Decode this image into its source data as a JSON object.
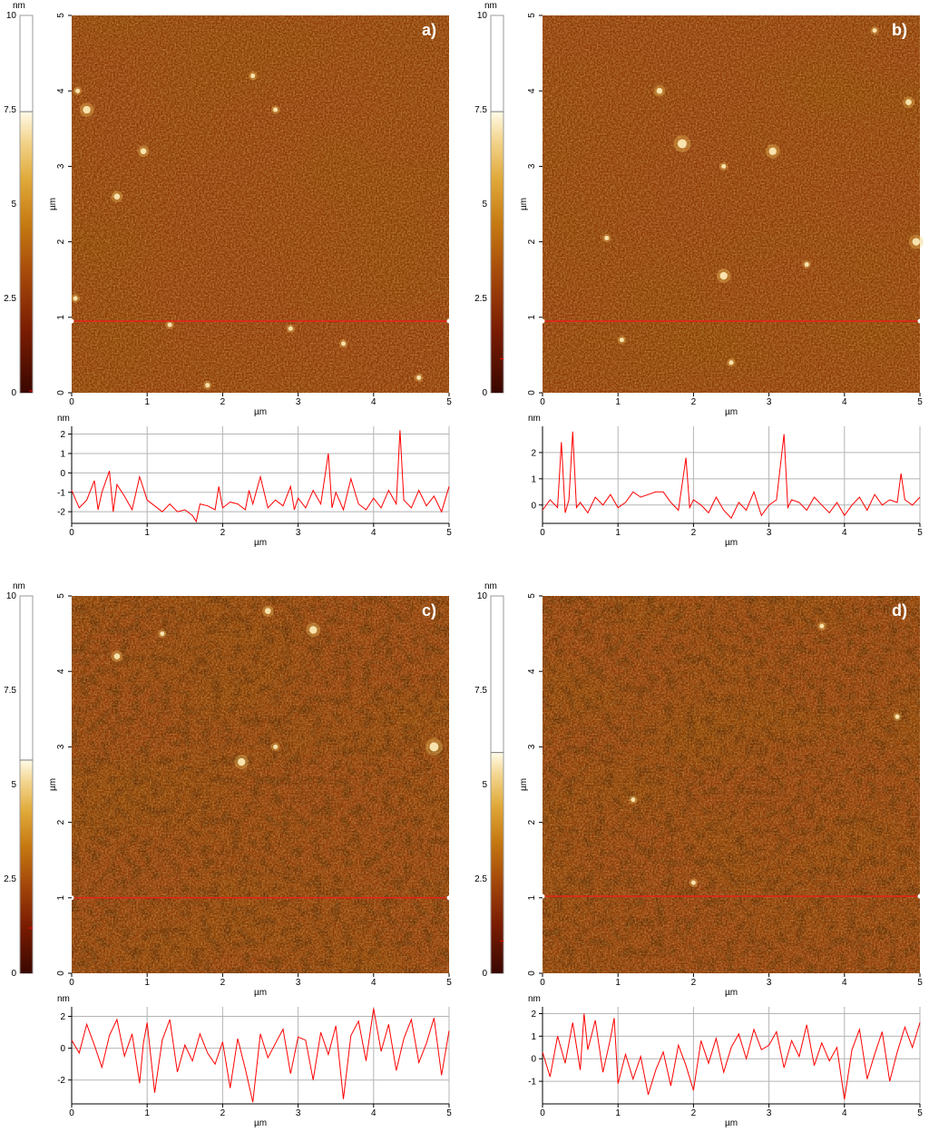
{
  "chart_data": [
    {
      "type": "heatmap",
      "panel_label": "a)",
      "image": {
        "xlabel": "µm",
        "ylabel": "µm",
        "xlim": [
          0,
          5
        ],
        "ylim": [
          0,
          5
        ],
        "xticks": [
          "0",
          "1",
          "2",
          "3",
          "4",
          "5"
        ],
        "yticks": [
          "0",
          "1",
          "2",
          "3",
          "4",
          "5"
        ],
        "scan_line_y": 0.95,
        "features": [
          {
            "x": 0.2,
            "y": 3.75,
            "r": 0.05
          },
          {
            "x": 0.08,
            "y": 4.0,
            "r": 0.03
          },
          {
            "x": 0.95,
            "y": 3.2,
            "r": 0.04
          },
          {
            "x": 0.6,
            "y": 2.6,
            "r": 0.04
          },
          {
            "x": 1.3,
            "y": 0.9,
            "r": 0.03
          },
          {
            "x": 2.4,
            "y": 4.2,
            "r": 0.03
          },
          {
            "x": 2.9,
            "y": 0.85,
            "r": 0.03
          },
          {
            "x": 3.6,
            "y": 0.65,
            "r": 0.03
          },
          {
            "x": 1.8,
            "y": 0.1,
            "r": 0.03
          },
          {
            "x": 0.05,
            "y": 1.25,
            "r": 0.03
          },
          {
            "x": 4.6,
            "y": 0.2,
            "r": 0.03
          },
          {
            "x": 2.7,
            "y": 3.75,
            "r": 0.03
          }
        ]
      },
      "colorbar": {
        "unit": "nm",
        "ticks": [
          "0",
          "2.5",
          "5",
          "7.5",
          "10"
        ],
        "range": [
          0,
          10
        ],
        "data_max": 7.45,
        "data_min": 0.05
      },
      "profile": {
        "ylabel": "nm",
        "xlabel": "µm",
        "xlim": [
          0,
          5
        ],
        "ylim": [
          -2.6,
          2.4
        ],
        "xticks": [
          "0",
          "1",
          "2",
          "3",
          "4",
          "5"
        ],
        "yticks": [
          "-2",
          "-1",
          "0",
          "1",
          "2"
        ],
        "x": [
          0,
          0.1,
          0.2,
          0.3,
          0.35,
          0.4,
          0.5,
          0.55,
          0.6,
          0.7,
          0.8,
          0.9,
          1.0,
          1.1,
          1.2,
          1.3,
          1.4,
          1.5,
          1.6,
          1.65,
          1.7,
          1.8,
          1.9,
          1.95,
          2.0,
          2.1,
          2.2,
          2.3,
          2.35,
          2.4,
          2.5,
          2.6,
          2.7,
          2.8,
          2.9,
          2.95,
          3.0,
          3.1,
          3.2,
          3.3,
          3.4,
          3.45,
          3.5,
          3.6,
          3.7,
          3.8,
          3.9,
          4.0,
          4.1,
          4.2,
          4.3,
          4.35,
          4.4,
          4.5,
          4.6,
          4.7,
          4.8,
          4.9,
          5.0
        ],
        "y": [
          -0.9,
          -1.8,
          -1.4,
          -0.4,
          -1.9,
          -1.0,
          0.1,
          -2.0,
          -0.6,
          -1.2,
          -1.9,
          -0.2,
          -1.4,
          -1.7,
          -2.0,
          -1.6,
          -2.0,
          -1.9,
          -2.2,
          -2.5,
          -1.6,
          -1.7,
          -1.9,
          -0.7,
          -1.8,
          -1.5,
          -1.6,
          -1.9,
          -0.9,
          -1.6,
          -0.2,
          -1.8,
          -1.4,
          -1.7,
          -0.7,
          -1.9,
          -1.3,
          -1.8,
          -0.9,
          -1.6,
          1.0,
          -1.8,
          -1.0,
          -1.9,
          -0.3,
          -1.6,
          -1.9,
          -1.3,
          -1.8,
          -0.9,
          -1.6,
          2.2,
          -1.4,
          -1.8,
          -0.9,
          -1.7,
          -1.2,
          -2.0,
          -0.7
        ]
      }
    },
    {
      "type": "heatmap",
      "panel_label": "b)",
      "image": {
        "xlabel": "µm",
        "ylabel": "µm",
        "xlim": [
          0,
          5
        ],
        "ylim": [
          0,
          5
        ],
        "xticks": [
          "0",
          "1",
          "2",
          "3",
          "4",
          "5"
        ],
        "yticks": [
          "0",
          "1",
          "2",
          "3",
          "4",
          "5"
        ],
        "scan_line_y": 0.95,
        "features": [
          {
            "x": 1.85,
            "y": 3.3,
            "r": 0.06
          },
          {
            "x": 3.05,
            "y": 3.2,
            "r": 0.05
          },
          {
            "x": 2.4,
            "y": 1.55,
            "r": 0.05
          },
          {
            "x": 4.95,
            "y": 2.0,
            "r": 0.05
          },
          {
            "x": 4.85,
            "y": 3.85,
            "r": 0.04
          },
          {
            "x": 1.55,
            "y": 4.0,
            "r": 0.04
          },
          {
            "x": 2.4,
            "y": 3.0,
            "r": 0.03
          },
          {
            "x": 0.85,
            "y": 2.05,
            "r": 0.03
          },
          {
            "x": 1.05,
            "y": 0.7,
            "r": 0.03
          },
          {
            "x": 3.5,
            "y": 1.7,
            "r": 0.03
          },
          {
            "x": 4.4,
            "y": 4.8,
            "r": 0.03
          },
          {
            "x": 2.5,
            "y": 0.4,
            "r": 0.03
          }
        ]
      },
      "colorbar": {
        "unit": "nm",
        "ticks": [
          "0",
          "2.5",
          "5",
          "7.5",
          "10"
        ],
        "range": [
          0,
          10
        ],
        "data_max": 7.45,
        "data_min": 0.9
      },
      "profile": {
        "ylabel": "nm",
        "xlabel": "µm",
        "xlim": [
          0,
          5
        ],
        "ylim": [
          -0.7,
          3.0
        ],
        "xticks": [
          "0",
          "1",
          "2",
          "3",
          "4",
          "5"
        ],
        "yticks": [
          "0",
          "1",
          "2"
        ],
        "x": [
          0,
          0.1,
          0.2,
          0.25,
          0.3,
          0.35,
          0.4,
          0.45,
          0.5,
          0.6,
          0.7,
          0.8,
          0.9,
          1.0,
          1.1,
          1.2,
          1.3,
          1.4,
          1.5,
          1.6,
          1.7,
          1.8,
          1.9,
          1.95,
          2.0,
          2.1,
          2.2,
          2.3,
          2.4,
          2.5,
          2.6,
          2.7,
          2.8,
          2.9,
          3.0,
          3.1,
          3.2,
          3.25,
          3.3,
          3.4,
          3.5,
          3.6,
          3.7,
          3.8,
          3.9,
          4.0,
          4.1,
          4.2,
          4.3,
          4.4,
          4.5,
          4.6,
          4.7,
          4.75,
          4.8,
          4.9,
          5.0
        ],
        "y": [
          -0.2,
          0.2,
          -0.1,
          2.4,
          -0.3,
          0.2,
          2.8,
          -0.1,
          0.1,
          -0.3,
          0.3,
          0.0,
          0.4,
          -0.1,
          0.1,
          0.5,
          0.3,
          0.4,
          0.5,
          0.5,
          0.1,
          -0.2,
          1.8,
          -0.1,
          0.2,
          0.0,
          -0.3,
          0.3,
          -0.2,
          -0.5,
          0.1,
          -0.2,
          0.5,
          -0.4,
          0.0,
          0.2,
          2.7,
          -0.1,
          0.2,
          0.1,
          -0.2,
          0.3,
          0.0,
          -0.3,
          0.1,
          -0.4,
          0.0,
          0.3,
          -0.2,
          0.4,
          0.0,
          0.2,
          0.1,
          1.2,
          0.2,
          0.0,
          0.3
        ]
      }
    },
    {
      "type": "heatmap",
      "panel_label": "c)",
      "image": {
        "xlabel": "µm",
        "ylabel": "µm",
        "xlim": [
          0,
          5
        ],
        "ylim": [
          0,
          5
        ],
        "xticks": [
          "0",
          "1",
          "2",
          "3",
          "4",
          "5"
        ],
        "yticks": [
          "0",
          "1",
          "2",
          "3",
          "4",
          "5"
        ],
        "scan_line_y": 1.0,
        "features": [
          {
            "x": 4.8,
            "y": 3.0,
            "r": 0.06
          },
          {
            "x": 2.25,
            "y": 2.8,
            "r": 0.05
          },
          {
            "x": 3.2,
            "y": 4.55,
            "r": 0.05
          },
          {
            "x": 2.6,
            "y": 4.8,
            "r": 0.04
          },
          {
            "x": 0.6,
            "y": 4.2,
            "r": 0.04
          },
          {
            "x": 2.7,
            "y": 3.0,
            "r": 0.03
          },
          {
            "x": 1.2,
            "y": 4.5,
            "r": 0.03
          }
        ]
      },
      "colorbar": {
        "unit": "nm",
        "ticks": [
          "0",
          "2.5",
          "5",
          "7.5",
          "10"
        ],
        "range": [
          0,
          10
        ],
        "data_max": 5.65,
        "data_min": 1.2
      },
      "profile": {
        "ylabel": "nm",
        "xlabel": "µm",
        "xlim": [
          0,
          5
        ],
        "ylim": [
          -3.5,
          2.6
        ],
        "xticks": [
          "0",
          "1",
          "2",
          "3",
          "4",
          "5"
        ],
        "yticks": [
          "-2",
          "0",
          "2"
        ],
        "x": [
          0,
          0.1,
          0.2,
          0.3,
          0.4,
          0.5,
          0.6,
          0.7,
          0.8,
          0.9,
          0.95,
          1.0,
          1.1,
          1.2,
          1.3,
          1.4,
          1.5,
          1.6,
          1.7,
          1.8,
          1.9,
          2.0,
          2.1,
          2.2,
          2.3,
          2.4,
          2.5,
          2.6,
          2.7,
          2.8,
          2.9,
          3.0,
          3.1,
          3.2,
          3.3,
          3.4,
          3.5,
          3.6,
          3.7,
          3.8,
          3.9,
          4.0,
          4.1,
          4.2,
          4.3,
          4.4,
          4.5,
          4.6,
          4.7,
          4.8,
          4.9,
          5.0
        ],
        "y": [
          0.5,
          -0.3,
          1.5,
          0.2,
          -1.2,
          0.8,
          1.8,
          -0.5,
          0.9,
          -2.2,
          0.3,
          1.6,
          -2.8,
          0.5,
          1.8,
          -1.5,
          0.2,
          -0.8,
          0.9,
          -0.3,
          -1.0,
          0.4,
          -2.5,
          0.6,
          -1.3,
          -3.4,
          0.9,
          -0.6,
          0.3,
          1.2,
          -1.6,
          0.7,
          0.5,
          -2.0,
          1.0,
          -0.4,
          1.4,
          -3.2,
          0.8,
          1.7,
          -0.8,
          2.5,
          -0.2,
          1.5,
          -1.4,
          0.6,
          1.8,
          -0.9,
          0.3,
          1.9,
          -1.7,
          1.1
        ]
      }
    },
    {
      "type": "heatmap",
      "panel_label": "d)",
      "image": {
        "xlabel": "µm",
        "ylabel": "µm",
        "xlim": [
          0,
          5
        ],
        "ylim": [
          0,
          5
        ],
        "xticks": [
          "0",
          "1",
          "2",
          "3",
          "4",
          "5"
        ],
        "yticks": [
          "0",
          "1",
          "2",
          "3",
          "4",
          "5"
        ],
        "scan_line_y": 1.02,
        "features": [
          {
            "x": 1.2,
            "y": 2.3,
            "r": 0.03
          },
          {
            "x": 3.7,
            "y": 4.6,
            "r": 0.03
          },
          {
            "x": 2.0,
            "y": 1.2,
            "r": 0.03
          },
          {
            "x": 4.7,
            "y": 3.4,
            "r": 0.03
          }
        ]
      },
      "colorbar": {
        "unit": "nm",
        "ticks": [
          "0",
          "2.5",
          "5",
          "7.5",
          "10"
        ],
        "range": [
          0,
          10
        ],
        "data_max": 5.85,
        "data_min": 0.85
      },
      "profile": {
        "ylabel": "nm",
        "xlabel": "µm",
        "xlim": [
          0,
          5
        ],
        "ylim": [
          -2.0,
          2.3
        ],
        "xticks": [
          "0",
          "1",
          "2",
          "3",
          "4",
          "5"
        ],
        "yticks": [
          "-1",
          "0",
          "1",
          "2"
        ],
        "x": [
          0,
          0.1,
          0.2,
          0.3,
          0.4,
          0.5,
          0.55,
          0.6,
          0.7,
          0.8,
          0.9,
          0.95,
          1.0,
          1.1,
          1.2,
          1.3,
          1.4,
          1.5,
          1.6,
          1.7,
          1.8,
          1.9,
          2.0,
          2.1,
          2.2,
          2.3,
          2.4,
          2.5,
          2.6,
          2.7,
          2.8,
          2.9,
          3.0,
          3.1,
          3.2,
          3.3,
          3.4,
          3.5,
          3.6,
          3.7,
          3.8,
          3.9,
          4.0,
          4.1,
          4.2,
          4.3,
          4.4,
          4.5,
          4.6,
          4.7,
          4.8,
          4.9,
          5.0
        ],
        "y": [
          0.3,
          -0.8,
          1.0,
          -0.2,
          1.6,
          -0.5,
          2.0,
          0.4,
          1.7,
          -0.6,
          0.9,
          1.8,
          -1.1,
          0.2,
          -0.9,
          0.1,
          -1.6,
          -0.5,
          0.3,
          -1.2,
          0.6,
          -0.3,
          -1.4,
          0.8,
          -0.2,
          0.9,
          -0.6,
          0.5,
          1.1,
          0.0,
          1.3,
          0.4,
          0.6,
          1.2,
          -0.4,
          0.8,
          0.1,
          1.5,
          -0.3,
          0.7,
          -0.1,
          0.5,
          -1.8,
          0.4,
          1.3,
          -0.9,
          0.2,
          1.2,
          -1.0,
          0.3,
          1.4,
          0.5,
          1.6
        ]
      }
    }
  ],
  "colors": {
    "trace": "#ff0000",
    "scan_line": "#e8231a",
    "grid": "#b4b4b4",
    "axis_text": "#000000",
    "cmap": [
      "#3a0700",
      "#7a1c02",
      "#a5480a",
      "#c67a12",
      "#e0a93a",
      "#f3d690",
      "#fffbe8"
    ]
  }
}
